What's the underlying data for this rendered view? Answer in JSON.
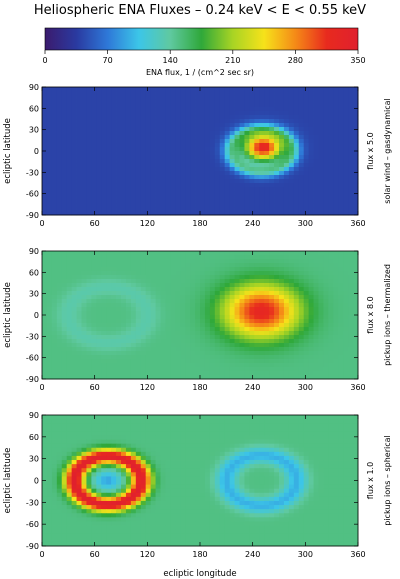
{
  "title": "Heliospheric ENA Fluxes   –   0.24 keV < E < 0.55 keV",
  "colorbar": {
    "label": "ENA flux,  1 / (cm^2 sec sr)",
    "range": [
      0,
      350
    ],
    "ticks": [
      0,
      70,
      140,
      210,
      280,
      350
    ],
    "colors": [
      "#3b1b6e",
      "#2a3aa0",
      "#2e78d8",
      "#3cc6e8",
      "#5fc9a0",
      "#2fa83a",
      "#a8d424",
      "#f6e21a",
      "#f58a17",
      "#e82a1e",
      "#e0202e"
    ]
  },
  "xlabel_bottom": "ecliptic longitude",
  "chart_data": [
    {
      "type": "heatmap",
      "xlabel": "",
      "ylabel": "ecliptic latitude",
      "right_label_scale": "flux  x 5.0",
      "right_label_model": "solar wind – gasdynamical",
      "xlim": [
        0,
        360
      ],
      "ylim": [
        -90,
        90
      ],
      "xticks": [
        0,
        60,
        120,
        180,
        240,
        300,
        360
      ],
      "yticks": [
        -90,
        -60,
        -30,
        0,
        30,
        60,
        90
      ],
      "background_value": 40,
      "features": [
        {
          "kind": "ring",
          "lon": 250,
          "lat": 0,
          "radius_deg": 33,
          "value": 130
        },
        {
          "kind": "blob",
          "lon": 252,
          "lat": 5,
          "radius_deg": 38,
          "value": 330
        }
      ]
    },
    {
      "type": "heatmap",
      "xlabel": "",
      "ylabel": "ecliptic latitude",
      "right_label_scale": "flux  x 8.0",
      "right_label_model": "pickup ions – thermalized",
      "xlim": [
        0,
        360
      ],
      "ylim": [
        -90,
        90
      ],
      "xticks": [
        0,
        60,
        120,
        180,
        240,
        300,
        360
      ],
      "yticks": [
        -90,
        -60,
        -30,
        0,
        30,
        60,
        90
      ],
      "background_value": 150,
      "features": [
        {
          "kind": "ring",
          "lon": 75,
          "lat": 0,
          "radius_deg": 45,
          "value": 135
        },
        {
          "kind": "blob",
          "lon": 250,
          "lat": 5,
          "radius_deg": 65,
          "value": 325
        }
      ]
    },
    {
      "type": "heatmap",
      "xlabel": "ecliptic longitude",
      "ylabel": "ecliptic latitude",
      "right_label_scale": "flux  x 1.0",
      "right_label_model": "pickup ions – spherical",
      "xlim": [
        0,
        360
      ],
      "ylim": [
        -90,
        90
      ],
      "xticks": [
        0,
        60,
        120,
        180,
        240,
        300,
        360
      ],
      "yticks": [
        -90,
        -60,
        -30,
        0,
        30,
        60,
        90
      ],
      "background_value": 150,
      "features": [
        {
          "kind": "ring",
          "lon": 250,
          "lat": 0,
          "radius_deg": 40,
          "value": 95
        },
        {
          "kind": "ring",
          "lon": 75,
          "lat": 0,
          "radius_deg": 38,
          "value": 350
        },
        {
          "kind": "blob",
          "lon": 75,
          "lat": 0,
          "radius_deg": 25,
          "value": 90
        }
      ]
    }
  ]
}
